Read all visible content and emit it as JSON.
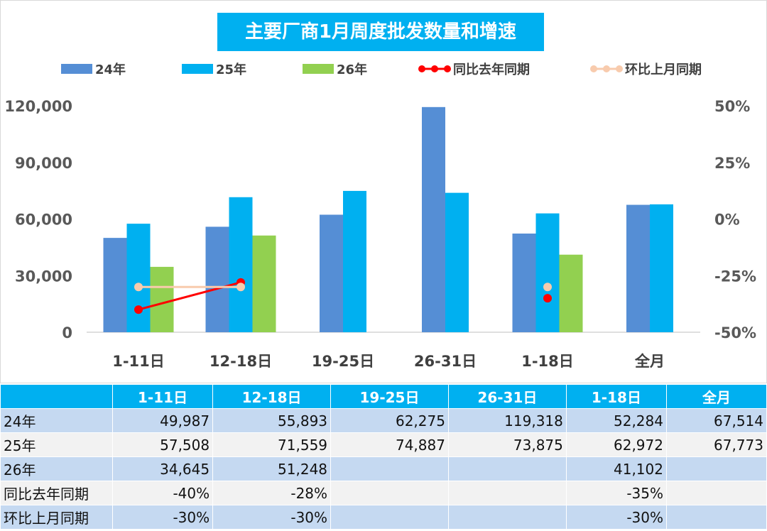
{
  "chart_data": {
    "type": "bar+line",
    "title": "主要厂商1月周度批发数量和增速",
    "categories": [
      "1-11日",
      "12-18日",
      "19-25日",
      "26-31日",
      "1-18日",
      "全月"
    ],
    "left_axis": {
      "ylim": [
        0,
        120000
      ],
      "ticks": [
        "0",
        "30,000",
        "60,000",
        "90,000",
        "120,000"
      ]
    },
    "right_axis": {
      "ylim": [
        -50,
        50
      ],
      "ticks": [
        "-50%",
        "-25%",
        "0%",
        "25%",
        "50%"
      ]
    },
    "legend_position": "top",
    "series": [
      {
        "name": "24年",
        "type": "bar",
        "color": "#558ED5",
        "values": [
          49987,
          55893,
          62275,
          119318,
          52284,
          67514
        ]
      },
      {
        "name": "25年",
        "type": "bar",
        "color": "#00B0F0",
        "values": [
          57508,
          71559,
          74887,
          73875,
          62972,
          67773
        ]
      },
      {
        "name": "26年",
        "type": "bar",
        "color": "#92D050",
        "values": [
          34645,
          51248,
          null,
          null,
          41102,
          null
        ]
      },
      {
        "name": "同比去年同期",
        "type": "line",
        "axis": "right",
        "color": "#FF0000",
        "values": [
          -40,
          -28,
          null,
          null,
          -35,
          null
        ]
      },
      {
        "name": "环比上月同期",
        "type": "line",
        "axis": "right",
        "color": "#F8CBAD",
        "values": [
          -30,
          -30,
          null,
          null,
          -30,
          null
        ]
      }
    ]
  },
  "table": {
    "headers": [
      "",
      "1-11日",
      "12-18日",
      "19-25日",
      "26-31日",
      "1-18日",
      "全月"
    ],
    "rows": [
      {
        "label": "24年",
        "cells": [
          "49,987",
          "55,893",
          "62,275",
          "119,318",
          "52,284",
          "67,514"
        ]
      },
      {
        "label": "25年",
        "cells": [
          "57,508",
          "71,559",
          "74,887",
          "73,875",
          "62,972",
          "67,773"
        ]
      },
      {
        "label": "26年",
        "cells": [
          "34,645",
          "51,248",
          "",
          "",
          "41,102",
          ""
        ]
      },
      {
        "label": "同比去年同期",
        "cells": [
          "-40%",
          "-28%",
          "",
          "",
          "-35%",
          ""
        ]
      },
      {
        "label": "环比上月同期",
        "cells": [
          "-30%",
          "-30%",
          "",
          "",
          "-30%",
          ""
        ]
      }
    ]
  }
}
